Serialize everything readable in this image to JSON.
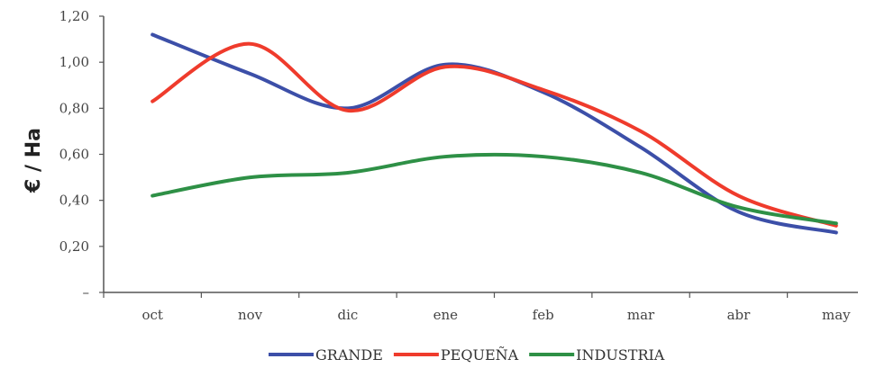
{
  "chart_data": {
    "type": "line",
    "ylabel": "€ / Ha",
    "xlabel": "",
    "categories": [
      "oct",
      "nov",
      "dic",
      "ene",
      "feb",
      "mar",
      "abr",
      "may"
    ],
    "y_ticks": [
      "–",
      "0,20",
      "0,40",
      "0,60",
      "0,80",
      "1,00",
      "1,20"
    ],
    "ylim": [
      0,
      1.2
    ],
    "legend_position": "bottom",
    "grid": false,
    "series": [
      {
        "name": "GRANDE",
        "color": "#3c4fa8",
        "values": [
          1.12,
          0.95,
          0.8,
          0.99,
          0.87,
          0.63,
          0.35,
          0.26
        ]
      },
      {
        "name": "PEQUEÑA",
        "color": "#ef3b2c",
        "values": [
          0.83,
          1.08,
          0.79,
          0.98,
          0.88,
          0.7,
          0.42,
          0.29
        ]
      },
      {
        "name": "INDUSTRIA",
        "color": "#2e9046",
        "values": [
          0.42,
          0.5,
          0.52,
          0.59,
          0.59,
          0.52,
          0.37,
          0.3
        ]
      }
    ]
  }
}
